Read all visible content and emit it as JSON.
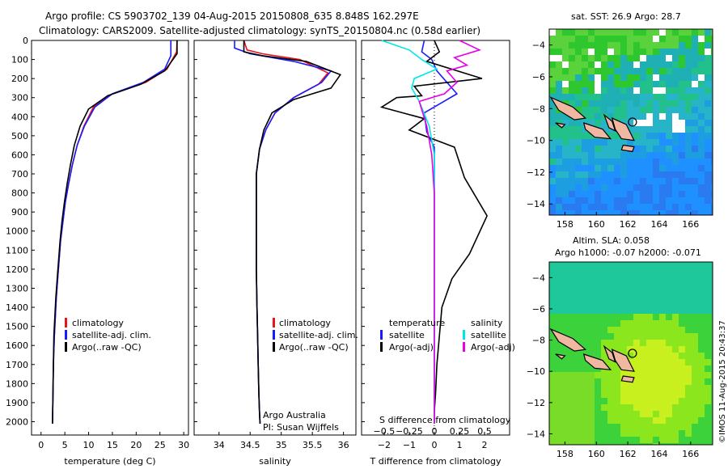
{
  "header": {
    "line1": "Argo profile: CS 5903702_139 04-Aug-2015 20150808_635 8.848S 162.297E",
    "line2": "Climatology: CARS2009. Satellite-adjusted climatology: synTS_20150804.nc (0.58d earlier)"
  },
  "colors": {
    "climatology": "#e8141c",
    "satellite": "#1a1aff",
    "argo": "#000000",
    "salinity_satellite": "#00e6e6",
    "salinity_argo": "#e600e6"
  },
  "chart_data": [
    {
      "type": "line",
      "id": "temperature",
      "xlabel": "temperature (deg C)",
      "xlim": [
        -2,
        31
      ],
      "xticks": [
        0,
        5,
        10,
        15,
        20,
        25,
        30
      ],
      "ylim": [
        2070,
        0
      ],
      "yticks": [
        0,
        100,
        200,
        300,
        400,
        500,
        600,
        700,
        800,
        900,
        1000,
        1100,
        1200,
        1300,
        1400,
        1500,
        1600,
        1700,
        1800,
        1900,
        2000
      ],
      "legend": [
        "climatology",
        "satellite-adj. clim.",
        "Argo(..raw -QC)"
      ],
      "series": [
        {
          "name": "climatology",
          "color": "#e8141c",
          "x": [
            28.6,
            28.5,
            26.5,
            22,
            15,
            11,
            9,
            7.6,
            6.6,
            5.8,
            5.1,
            4.6,
            4.1,
            3.8,
            3.5,
            3.2,
            3.0,
            2.8,
            2.6,
            2.5,
            2.4
          ],
          "y": [
            0,
            60,
            150,
            220,
            280,
            350,
            450,
            550,
            650,
            750,
            850,
            950,
            1050,
            1150,
            1250,
            1350,
            1450,
            1550,
            1700,
            1850,
            2010
          ]
        },
        {
          "name": "satellite-adj. clim.",
          "color": "#1a1aff",
          "x": [
            27.3,
            27.3,
            26,
            21.5,
            15,
            11.3,
            9.1,
            7.6,
            6.6,
            5.8,
            5.1,
            4.6,
            4.1,
            3.8,
            3.5,
            3.2,
            3.0,
            2.8,
            2.6,
            2.5,
            2.4
          ],
          "y": [
            0,
            80,
            150,
            220,
            280,
            350,
            450,
            550,
            650,
            750,
            850,
            950,
            1050,
            1150,
            1250,
            1350,
            1450,
            1550,
            1700,
            1850,
            2010
          ]
        },
        {
          "name": "Argo(..raw -QC)",
          "color": "#000000",
          "x": [
            28.6,
            28.6,
            26,
            21,
            14,
            10,
            8.2,
            7,
            6.2,
            5.5,
            4.9,
            4.4,
            4.0,
            3.7,
            3.4,
            3.1,
            2.9,
            2.7,
            2.6,
            2.5,
            2.4
          ],
          "y": [
            0,
            70,
            160,
            230,
            290,
            360,
            450,
            550,
            650,
            750,
            850,
            950,
            1050,
            1150,
            1250,
            1350,
            1450,
            1550,
            1700,
            1850,
            2010
          ]
        }
      ]
    },
    {
      "type": "line",
      "id": "salinity",
      "xlabel": "salinity",
      "xlim": [
        33.6,
        36.2
      ],
      "xticks": [
        34,
        34.5,
        35,
        35.5,
        36
      ],
      "ylim": [
        2070,
        0
      ],
      "legend": [
        "climatology",
        "satellite-adj. clim.",
        "Argo(..raw -QC)"
      ],
      "series": [
        {
          "name": "climatology",
          "color": "#e8141c",
          "x": [
            34.4,
            34.45,
            34.7,
            35.3,
            35.75,
            35.6,
            35.2,
            34.9,
            34.75,
            34.65,
            34.6,
            34.6,
            34.6,
            34.6,
            34.61,
            34.62,
            34.63,
            34.64,
            34.65,
            34.66
          ],
          "y": [
            0,
            50,
            70,
            100,
            170,
            230,
            300,
            380,
            470,
            570,
            700,
            850,
            1000,
            1200,
            1400,
            1550,
            1700,
            1850,
            1950,
            2010
          ]
        },
        {
          "name": "satellite-adj. clim.",
          "color": "#1a1aff",
          "x": [
            34.25,
            34.25,
            34.5,
            35.2,
            35.8,
            35.65,
            35.2,
            34.9,
            34.75,
            34.65,
            34.6,
            34.6,
            34.6,
            34.6,
            34.61,
            34.62,
            34.63,
            34.64,
            34.65,
            34.66
          ],
          "y": [
            0,
            40,
            70,
            110,
            160,
            220,
            300,
            380,
            470,
            570,
            700,
            850,
            1000,
            1200,
            1400,
            1550,
            1700,
            1850,
            1950,
            2010
          ]
        },
        {
          "name": "Argo(..raw -QC)",
          "color": "#000000",
          "x": [
            34.4,
            34.4,
            34.7,
            35.4,
            35.95,
            35.8,
            35.2,
            34.85,
            34.72,
            34.65,
            34.6,
            34.6,
            34.6,
            34.6,
            34.61,
            34.62,
            34.63,
            34.64,
            34.65,
            34.66
          ],
          "y": [
            0,
            60,
            80,
            110,
            180,
            250,
            310,
            380,
            470,
            570,
            700,
            850,
            1000,
            1200,
            1400,
            1550,
            1700,
            1850,
            1950,
            2010
          ]
        }
      ],
      "annotations": [
        "Argo Australia",
        "PI: Susan Wijffels"
      ]
    },
    {
      "type": "line",
      "id": "difference",
      "xlabel": "T difference from climatology",
      "xlabel_top": "S difference from climatology",
      "xlim": [
        -2.9,
        3
      ],
      "xticks": [
        -2,
        -1,
        0,
        1,
        2
      ],
      "xticks_top": [
        -0.5,
        -0.25,
        0,
        0.25,
        0.5
      ],
      "ylim": [
        2070,
        0
      ],
      "legend_temperature": {
        "title": "temperature",
        "items": [
          "satellite",
          "Argo(-adj)"
        ]
      },
      "legend_salinity": {
        "title": "salinity",
        "items": [
          "satellite",
          "Argo(-adj)"
        ]
      },
      "series": [
        {
          "name": "temperature satellite",
          "color": "#1a1aff",
          "x": [
            -0.4,
            -0.5,
            -0.1,
            0.1,
            0.9,
            -0.4,
            -0.3,
            0.0,
            0.0,
            0.0,
            0.0,
            0.0,
            0.0,
            0.0,
            0.0
          ],
          "y": [
            0,
            60,
            100,
            160,
            280,
            380,
            480,
            560,
            700,
            850,
            1000,
            1200,
            1500,
            1800,
            2010
          ]
        },
        {
          "name": "temperature Argo(-adj)",
          "color": "#000000",
          "x": [
            0.0,
            0.2,
            -0.3,
            1.9,
            -0.8,
            -0.5,
            -1.5,
            -2.1,
            -0.4,
            -1.0,
            0.8,
            1.2,
            2.1,
            1.4,
            0.7,
            0.3,
            0.2,
            0.1,
            0.05,
            0.0,
            0.0
          ],
          "y": [
            0,
            60,
            110,
            200,
            240,
            290,
            300,
            350,
            410,
            470,
            560,
            720,
            920,
            1120,
            1250,
            1400,
            1550,
            1700,
            1850,
            1950,
            2010
          ]
        },
        {
          "name": "salinity satellite",
          "color": "#00e6e6",
          "x": [
            -2.1,
            -1.0,
            -0.5,
            0.1,
            -0.8,
            -0.9,
            -0.6,
            -0.2,
            0.0,
            0.0,
            0.0,
            0.0,
            0.0,
            0.0,
            0.0
          ],
          "y": [
            0,
            50,
            100,
            150,
            200,
            250,
            320,
            450,
            600,
            800,
            1000,
            1300,
            1600,
            1850,
            2010
          ]
        },
        {
          "name": "salinity Argo(-adj)",
          "color": "#e600e6",
          "x": [
            1.0,
            1.8,
            0.8,
            1.3,
            0.5,
            0.9,
            0.4,
            -0.6,
            -0.3,
            -0.1,
            0.0,
            0.0,
            0.0,
            0.0,
            0.0
          ],
          "y": [
            0,
            50,
            90,
            130,
            160,
            220,
            280,
            320,
            450,
            600,
            800,
            1100,
            1500,
            1850,
            2010
          ]
        }
      ]
    },
    {
      "type": "heatmap",
      "id": "sst-map",
      "title": "sat. SST: 26.9 Argo: 28.7",
      "xlim": [
        157,
        167.4
      ],
      "ylim": [
        -14.7,
        -3
      ],
      "xticks": [
        158,
        160,
        162,
        164,
        166
      ],
      "yticks": [
        -4,
        -6,
        -8,
        -10,
        -12,
        -14
      ],
      "marker": {
        "lon": 162.297,
        "lat": -8.848
      }
    },
    {
      "type": "heatmap",
      "id": "sla-map",
      "title": "Altim. SLA: 0.058",
      "subtitle": "Argo h1000: -0.07 h2000: -0.071",
      "xlim": [
        157,
        167.4
      ],
      "ylim": [
        -14.7,
        -3
      ],
      "xticks": [
        158,
        160,
        162,
        164,
        166
      ],
      "yticks": [
        -4,
        -6,
        -8,
        -10,
        -12,
        -14
      ],
      "marker": {
        "lon": 162.297,
        "lat": -8.848
      }
    }
  ],
  "footer": {
    "credit": "©IMOS 11-Aug-2015 20:43:37"
  }
}
